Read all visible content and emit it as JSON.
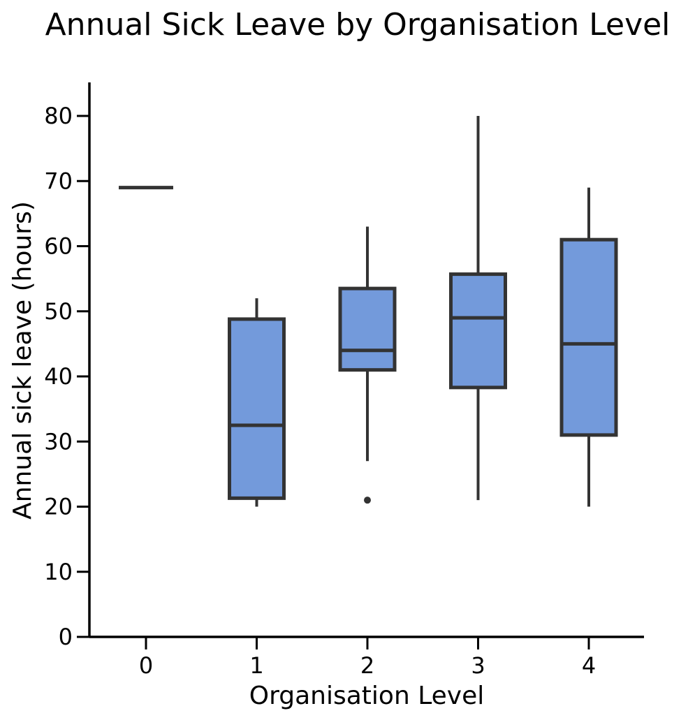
{
  "chart_data": {
    "type": "box",
    "title": "Annual Sick Leave by Organisation Level",
    "xlabel": "Organisation Level",
    "ylabel": "Annual sick leave (hours)",
    "ylim": [
      0,
      85
    ],
    "yticks": [
      0,
      10,
      20,
      30,
      40,
      50,
      60,
      70,
      80
    ],
    "grid": false,
    "box_color": "#739ADB",
    "line_color": "#333333",
    "categories": [
      "0",
      "1",
      "2",
      "3",
      "4"
    ],
    "boxes": [
      {
        "category": "0",
        "whisker_low": 69,
        "q1": 69,
        "median": 69,
        "q3": 69,
        "whisker_high": 69,
        "outliers": []
      },
      {
        "category": "1",
        "whisker_low": 20,
        "q1": 21.3,
        "median": 32.5,
        "q3": 48.8,
        "whisker_high": 52,
        "outliers": []
      },
      {
        "category": "2",
        "whisker_low": 27,
        "q1": 41,
        "median": 44,
        "q3": 53.5,
        "whisker_high": 63,
        "outliers": [
          21
        ]
      },
      {
        "category": "3",
        "whisker_low": 21,
        "q1": 38.3,
        "median": 49,
        "q3": 55.7,
        "whisker_high": 80,
        "outliers": []
      },
      {
        "category": "4",
        "whisker_low": 20,
        "q1": 31,
        "median": 45,
        "q3": 61,
        "whisker_high": 69,
        "outliers": []
      }
    ]
  }
}
